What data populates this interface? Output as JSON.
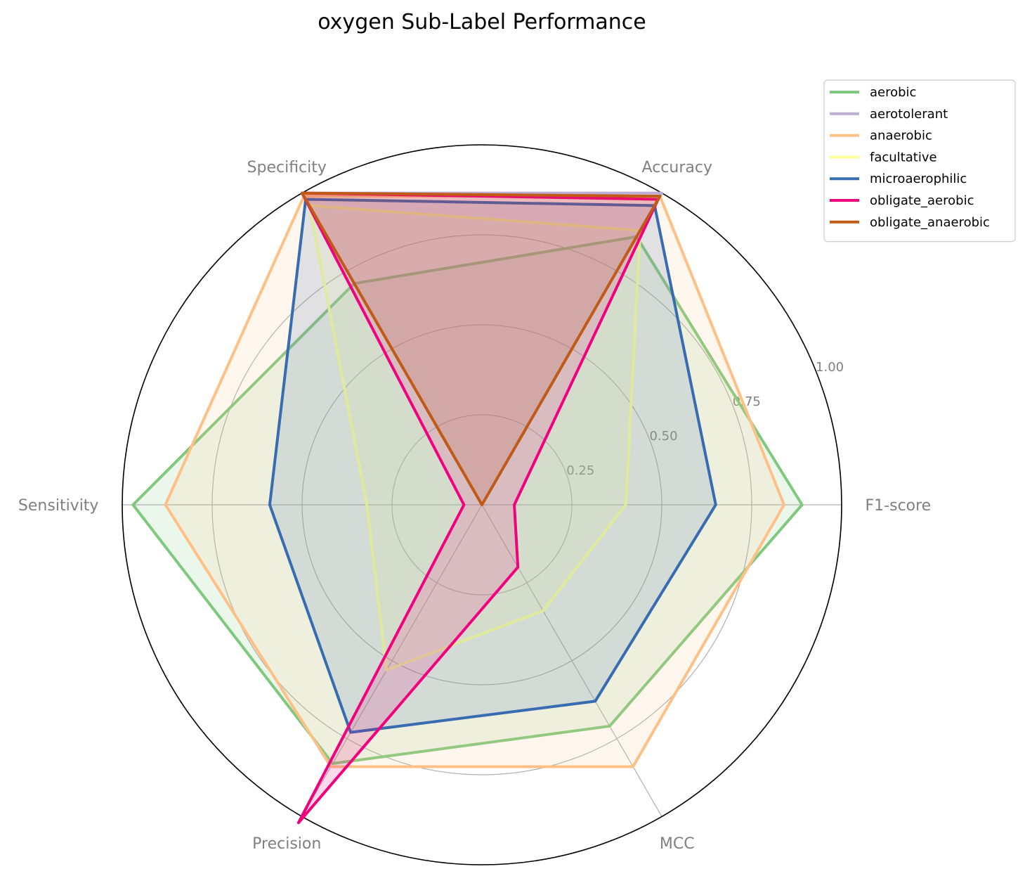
{
  "chart_data": {
    "type": "radar",
    "title": "oxygen Sub-Label Performance",
    "axes": [
      "F1-score",
      "Accuracy",
      "Specificity",
      "Sensitivity",
      "Precision",
      "MCC"
    ],
    "rticks": [
      "0.25",
      "0.50",
      "0.75",
      "1.00"
    ],
    "rtick_values": [
      0.25,
      0.5,
      0.75,
      1.0
    ],
    "rlim": [
      0,
      1
    ],
    "grid": true,
    "legend_position": "top-right",
    "series": [
      {
        "name": "aerobic",
        "color": "#7fc97f",
        "values": [
          0.89,
          0.86,
          0.71,
          0.97,
          0.83,
          0.71
        ]
      },
      {
        "name": "aerotolerant",
        "color": "#beaed4",
        "values": [
          0.0,
          1.0,
          1.0,
          0.0,
          0.0,
          0.0
        ]
      },
      {
        "name": "anaerobic",
        "color": "#fdc086",
        "values": [
          0.84,
          0.99,
          0.99,
          0.88,
          0.84,
          0.84
        ]
      },
      {
        "name": "facultative",
        "color": "#ffff99",
        "values": [
          0.4,
          0.88,
          0.96,
          0.32,
          0.53,
          0.34
        ]
      },
      {
        "name": "microaerophilic",
        "color": "#386cb0",
        "values": [
          0.65,
          0.96,
          0.98,
          0.59,
          0.73,
          0.63
        ]
      },
      {
        "name": "obligate_aerobic",
        "color": "#f0027f",
        "values": [
          0.09,
          0.98,
          1.0,
          0.05,
          1.02,
          0.2
        ]
      },
      {
        "name": "obligate_anaerobic",
        "color": "#bf5b17",
        "values": [
          0.0,
          0.99,
          1.0,
          0.0,
          0.0,
          0.0
        ]
      }
    ]
  }
}
